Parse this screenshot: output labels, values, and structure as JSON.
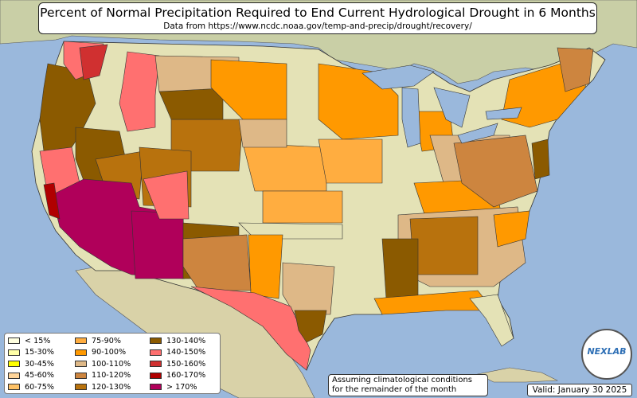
{
  "title": "Percent of Normal Precipitation Required to End Current Hydrological Drought in 6 Months",
  "subtitle": "Data from https://www.ncdc.noaa.gov/temp-and-precip/drought/recovery/",
  "note_line1": "Assuming climatological conditions",
  "note_line2": "for the remainder of the month",
  "valid_text": "Valid: January 30 2025",
  "logo_text": "NEXLAB",
  "colors": {
    "water": "#9ab8dc",
    "land": "#e4e2b6",
    "border": "#333333"
  },
  "legend": [
    {
      "label": "< 15%",
      "color": "#ffffe0"
    },
    {
      "label": "15-30%",
      "color": "#ffffa8"
    },
    {
      "label": "30-45%",
      "color": "#ffff00"
    },
    {
      "label": "45-60%",
      "color": "#ffd59a"
    },
    {
      "label": "60-75%",
      "color": "#ffc266"
    },
    {
      "label": "75-90%",
      "color": "#ffad40"
    },
    {
      "label": "90-100%",
      "color": "#ff9900"
    },
    {
      "label": "100-110%",
      "color": "#deb887"
    },
    {
      "label": "110-120%",
      "color": "#cd853f"
    },
    {
      "label": "120-130%",
      "color": "#b8720d"
    },
    {
      "label": "130-140%",
      "color": "#8b5a00"
    },
    {
      "label": "140-150%",
      "color": "#ff7070"
    },
    {
      "label": "150-160%",
      "color": "#d03030"
    },
    {
      "label": "160-170%",
      "color": "#b00000"
    },
    {
      "label": "> 170%",
      "color": "#b0005a"
    }
  ]
}
